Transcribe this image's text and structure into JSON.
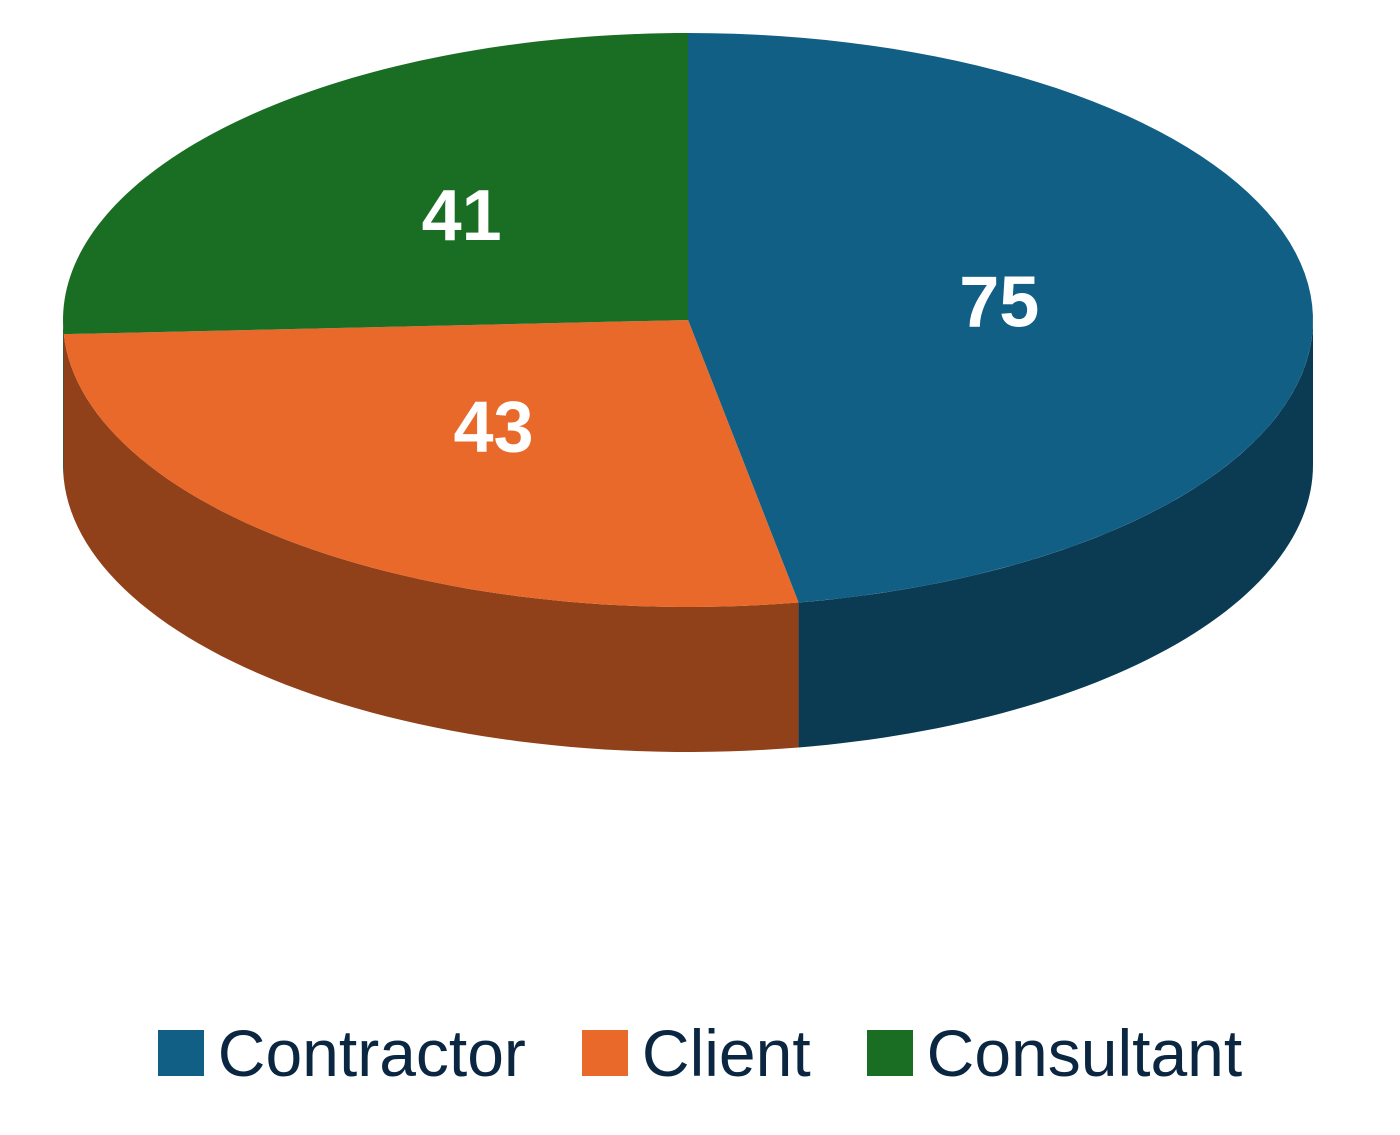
{
  "chart_data": {
    "type": "pie",
    "categories": [
      "Contractor",
      "Client",
      "Consultant"
    ],
    "values": [
      75,
      43,
      41
    ],
    "colors": [
      "#125f86",
      "#e8692a",
      "#1a6e23"
    ],
    "legend": "bottom"
  }
}
